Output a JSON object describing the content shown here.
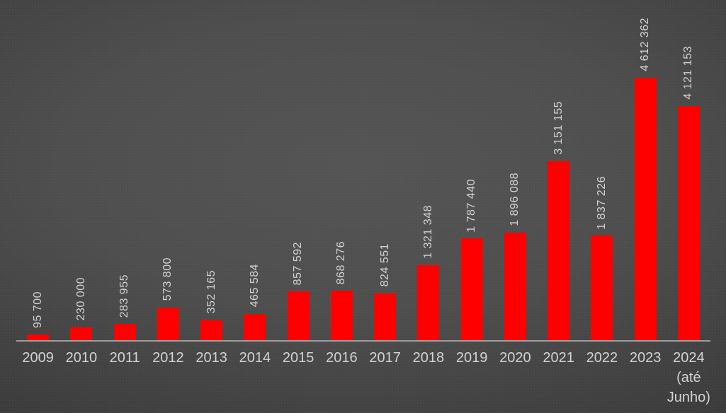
{
  "chart_data": {
    "type": "bar",
    "title": "",
    "xlabel": "",
    "ylabel": "",
    "legend": "none",
    "grid": "off",
    "orientation": "vertical",
    "value_label_rotation_deg": 90,
    "categories": [
      "2009",
      "2010",
      "2011",
      "2012",
      "2013",
      "2014",
      "2015",
      "2016",
      "2017",
      "2018",
      "2019",
      "2020",
      "2021",
      "2022",
      "2023",
      "2024 (até Junho)"
    ],
    "category_display_lines": [
      [
        "2009"
      ],
      [
        "2010"
      ],
      [
        "2011"
      ],
      [
        "2012"
      ],
      [
        "2013"
      ],
      [
        "2014"
      ],
      [
        "2015"
      ],
      [
        "2016"
      ],
      [
        "2017"
      ],
      [
        "2018"
      ],
      [
        "2019"
      ],
      [
        "2020"
      ],
      [
        "2021"
      ],
      [
        "2022"
      ],
      [
        "2023"
      ],
      [
        "2024",
        "(até",
        "Junho)"
      ]
    ],
    "values": [
      95700,
      230000,
      283955,
      573800,
      352165,
      465584,
      857592,
      868276,
      824551,
      1321348,
      1787440,
      1896088,
      3151155,
      1837226,
      4612362,
      4121153
    ],
    "value_labels": [
      "95 700",
      "230 000",
      "283 955",
      "573 800",
      "352 165",
      "465 584",
      "857 592",
      "868 276",
      "824 551",
      "1 321 348",
      "1 787 440",
      "1 896 088",
      "3 151 155",
      "1 837 226",
      "4 612 362",
      "4 121 153"
    ],
    "ylim": [
      0,
      4612362
    ],
    "colors": {
      "bar": "#fe0000",
      "label_text": "#d3d3d3",
      "axis_line": "#9e9e9e",
      "background_center": "#545454",
      "background_edge": "#1e1e1e"
    }
  }
}
